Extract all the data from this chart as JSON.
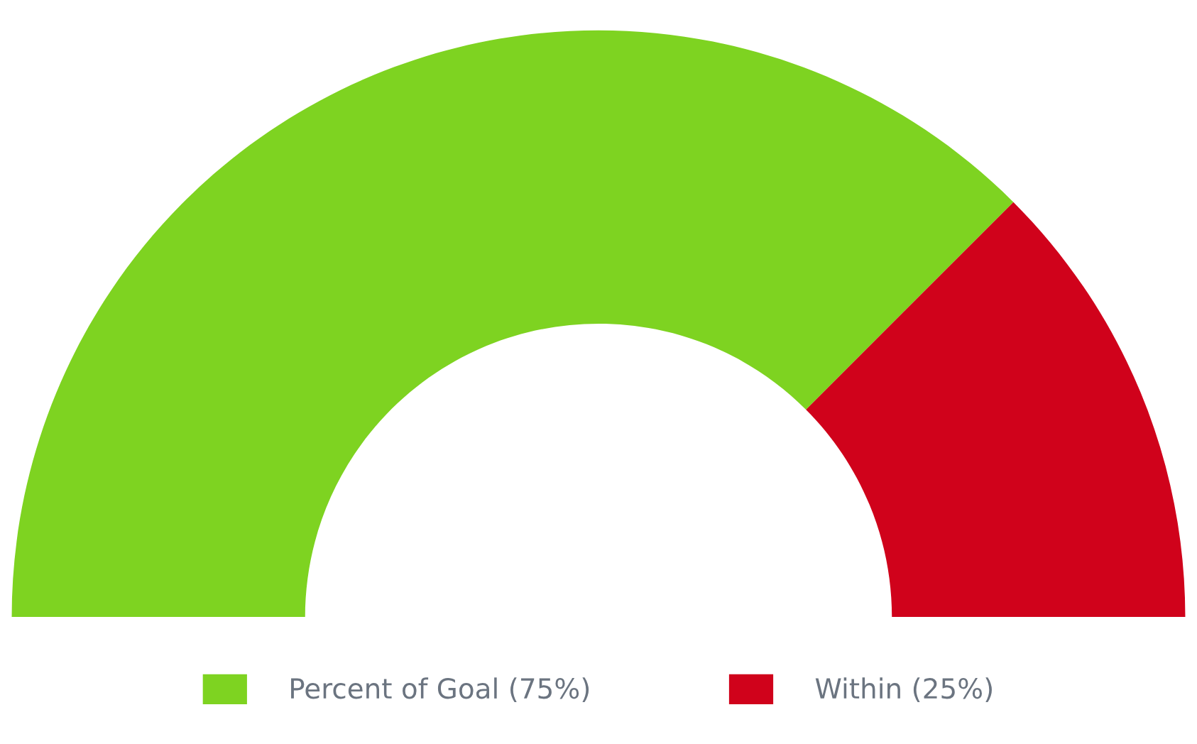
{
  "chart_data": {
    "type": "donut",
    "categories": [
      "Percent of Goal (75%)",
      "Within (25%)"
    ],
    "values": [
      75,
      25
    ],
    "colors": [
      "#7ed321",
      "#d0021b"
    ],
    "legend": "bottom"
  }
}
